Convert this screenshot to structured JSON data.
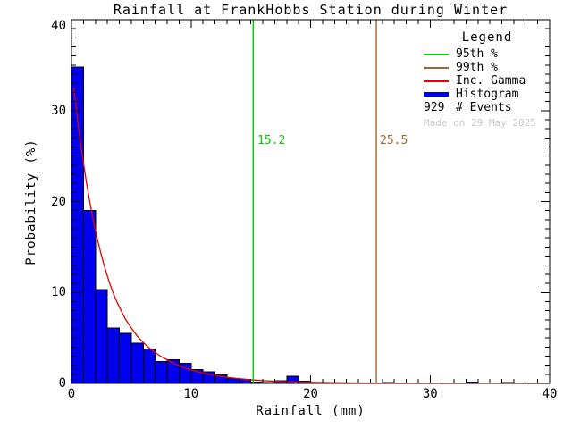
{
  "title": "Rainfall at FrankHobbs Station during Winter",
  "axes": {
    "xlabel": "Rainfall (mm)",
    "ylabel": "Probability (%)",
    "x_tick_labels": [
      "0",
      "10",
      "20",
      "30",
      "40"
    ],
    "y_tick_labels": [
      "0",
      "10",
      "20",
      "30",
      "40"
    ]
  },
  "annotations": {
    "p95_label": "15.2",
    "p99_label": "25.5"
  },
  "legend": {
    "title": "Legend",
    "entries": [
      {
        "label": "95th %",
        "swatch": "line",
        "color_key": "p95_green"
      },
      {
        "label": "99th %",
        "swatch": "line",
        "color_key": "p99_brown"
      },
      {
        "label": "Inc. Gamma",
        "swatch": "line",
        "color_key": "gamma_red"
      },
      {
        "label": "Histogram",
        "swatch": "thick",
        "color_key": "histogram_blue"
      }
    ],
    "events_value": "929",
    "events_label": "# Events",
    "made_on": "Made on 29 May 2025"
  },
  "colors": {
    "histogram_blue": "#0000ee",
    "gamma_red": "#e60000",
    "p95_green": "#00cc00",
    "p99_brown": "#a16632",
    "made_on_grey": "#c9c9c9",
    "axis_black": "#000000"
  },
  "chart_data": {
    "type": "bar",
    "subtype": "histogram_with_fit",
    "title": "Rainfall at FrankHobbs Station during Winter",
    "xlabel": "Rainfall (mm)",
    "ylabel": "Probability (%)",
    "xlim": [
      0,
      40
    ],
    "ylim": [
      0,
      40
    ],
    "x_ticks": [
      0,
      10,
      20,
      30,
      40
    ],
    "y_ticks": [
      0,
      10,
      20,
      30,
      40
    ],
    "x_minor_step": 1,
    "y_minor_step": 1,
    "grid": false,
    "legend_position": "top-right-inside",
    "n_events": 929,
    "bin_width_mm": 1,
    "bin_start_mm": 0,
    "bars_probability_pct": [
      34.8,
      19.0,
      10.3,
      6.1,
      5.5,
      4.4,
      3.8,
      2.4,
      2.6,
      2.2,
      1.5,
      1.3,
      0.95,
      0.55,
      0.45,
      0.15,
      0.1,
      0.3,
      0.8,
      0.25,
      0.1,
      0.1,
      0.05,
      0.05,
      0.05,
      0.05,
      0.08,
      0.0,
      0.05,
      0.05,
      0.0,
      0.0,
      0.0,
      0.15,
      0.0,
      0.0,
      0.12,
      0.0,
      0.0,
      0.0
    ],
    "fit_curve": {
      "name": "Inc. Gamma",
      "points_mm_pct": [
        [
          0.2,
          32.5
        ],
        [
          0.4,
          30.2
        ],
        [
          0.6,
          28.0
        ],
        [
          0.8,
          26.0
        ],
        [
          1,
          24.2
        ],
        [
          1.25,
          22.1
        ],
        [
          1.5,
          20.2
        ],
        [
          1.75,
          18.4
        ],
        [
          2,
          16.8
        ],
        [
          2.25,
          15.4
        ],
        [
          2.5,
          14.1
        ],
        [
          2.75,
          12.9
        ],
        [
          3,
          11.8
        ],
        [
          3.25,
          10.8
        ],
        [
          3.5,
          9.9
        ],
        [
          3.75,
          9.1
        ],
        [
          4,
          8.4
        ],
        [
          4.5,
          7.1
        ],
        [
          5,
          6.1
        ],
        [
          5.5,
          5.2
        ],
        [
          6,
          4.5
        ],
        [
          6.5,
          3.9
        ],
        [
          7,
          3.4
        ],
        [
          7.5,
          2.95
        ],
        [
          8,
          2.6
        ],
        [
          8.5,
          2.25
        ],
        [
          9,
          1.95
        ],
        [
          9.5,
          1.7
        ],
        [
          10,
          1.5
        ],
        [
          10.5,
          1.3
        ],
        [
          11,
          1.15
        ],
        [
          11.5,
          1.0
        ],
        [
          12,
          0.9
        ],
        [
          12.5,
          0.78
        ],
        [
          13,
          0.68
        ],
        [
          13.5,
          0.6
        ],
        [
          14,
          0.52
        ],
        [
          14.5,
          0.46
        ],
        [
          15,
          0.4
        ],
        [
          16,
          0.31
        ],
        [
          17,
          0.24
        ],
        [
          18,
          0.19
        ],
        [
          19,
          0.15
        ],
        [
          20,
          0.12
        ],
        [
          21,
          0.1
        ],
        [
          22,
          0.08
        ],
        [
          23,
          0.06
        ],
        [
          24,
          0.05
        ],
        [
          26,
          0.04
        ],
        [
          28,
          0.03
        ],
        [
          30,
          0.02
        ],
        [
          32,
          0.02
        ],
        [
          34,
          0.01
        ],
        [
          36,
          0.01
        ],
        [
          38,
          0.01
        ],
        [
          40,
          0.0
        ]
      ]
    },
    "percentile_lines": {
      "p95_mm": 15.2,
      "p99_mm": 25.5
    }
  }
}
